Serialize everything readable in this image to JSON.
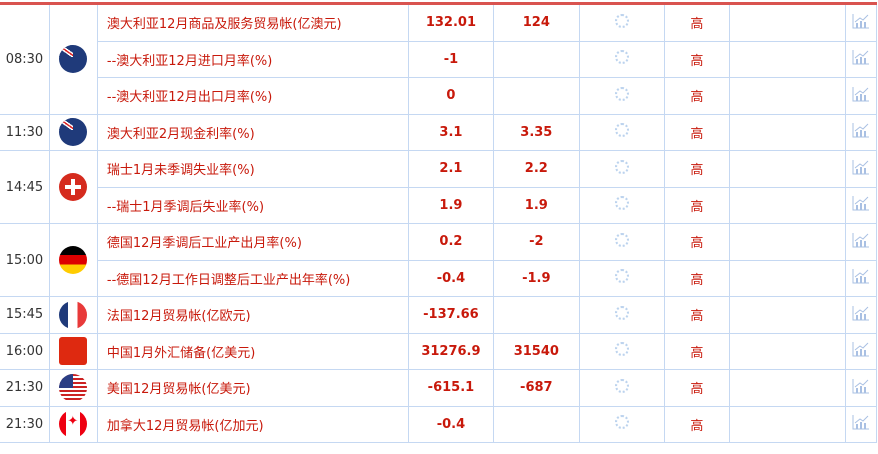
{
  "rows": [
    {
      "time": "08:30",
      "flag": "australia-flag-icon",
      "event": "澳大利亚12月商品及服务贸易帐(亿澳元)",
      "prev": "132.01",
      "forecast": "124",
      "importance": "高"
    },
    {
      "time": "",
      "flag": "",
      "event": "--澳大利亚12月进口月率(%)",
      "prev": "-1",
      "forecast": "",
      "importance": "高"
    },
    {
      "time": "",
      "flag": "",
      "event": "--澳大利亚12月出口月率(%)",
      "prev": "0",
      "forecast": "",
      "importance": "高"
    },
    {
      "time": "11:30",
      "flag": "australia-flag-icon",
      "event": "澳大利亚2月现金利率(%)",
      "prev": "3.1",
      "forecast": "3.35",
      "importance": "高"
    },
    {
      "time": "14:45",
      "flag": "switzerland-flag-icon",
      "event": "瑞士1月未季调失业率(%)",
      "prev": "2.1",
      "forecast": "2.2",
      "importance": "高"
    },
    {
      "time": "",
      "flag": "",
      "event": "--瑞士1月季调后失业率(%)",
      "prev": "1.9",
      "forecast": "1.9",
      "importance": "高"
    },
    {
      "time": "15:00",
      "flag": "germany-flag-icon",
      "event": "德国12月季调后工业产出月率(%)",
      "prev": "0.2",
      "forecast": "-2",
      "importance": "高"
    },
    {
      "time": "",
      "flag": "",
      "event": "--德国12月工作日调整后工业产出年率(%)",
      "prev": "-0.4",
      "forecast": "-1.9",
      "importance": "高"
    },
    {
      "time": "15:45",
      "flag": "france-flag-icon",
      "event": "法国12月贸易帐(亿欧元)",
      "prev": "-137.66",
      "forecast": "",
      "importance": "高"
    },
    {
      "time": "16:00",
      "flag": "china-flag-icon",
      "event": "中国1月外汇储备(亿美元)",
      "prev": "31276.9",
      "forecast": "31540",
      "importance": "高"
    },
    {
      "time": "21:30",
      "flag": "usa-flag-icon",
      "event": "美国12月贸易帐(亿美元)",
      "prev": "-615.1",
      "forecast": "-687",
      "importance": "高"
    },
    {
      "time": "21:30",
      "flag": "canada-flag-icon",
      "event": "加拿大12月贸易帐(亿加元)",
      "prev": "-0.4",
      "forecast": "",
      "importance": "高"
    }
  ]
}
